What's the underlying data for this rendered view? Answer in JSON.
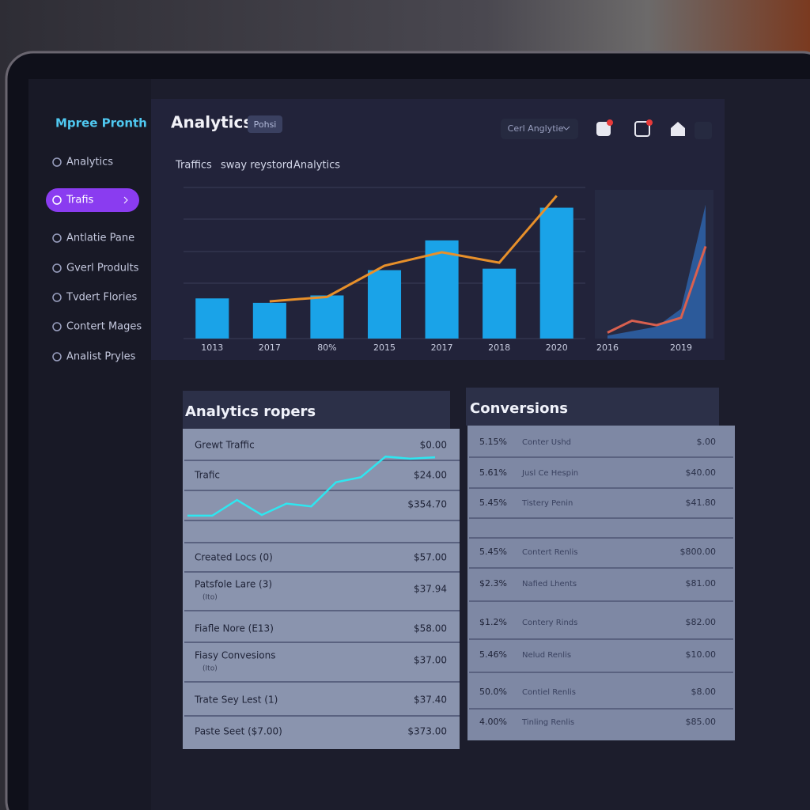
{
  "sidebar": {
    "brand": "Mpree Pronth",
    "nav": [
      "Analytics",
      "Trafis",
      "Antlatie Pane",
      "Gverl Prodults",
      "Tvdert Flories",
      "Contert Mages",
      "Analist Pryles"
    ],
    "active": 1
  },
  "header": {
    "title": "Analytics",
    "badge": "Pohsi",
    "dropdown": "Cerl Anglytie"
  },
  "tabs": [
    "Traffics",
    "sway reystord",
    "Analytics"
  ],
  "chart_data": [
    {
      "type": "bar",
      "categories": [
        "1013",
        "2017",
        "80%",
        "2015",
        "2017",
        "2018",
        "2020"
      ],
      "ylim": [
        0,
        100
      ],
      "series": [
        {
          "type": "bar",
          "color": "#1aa3e8",
          "values": [
            27,
            24,
            29,
            46,
            66,
            47,
            88
          ]
        },
        {
          "type": "line",
          "color": "#e8902a",
          "values": [
            null,
            25,
            28,
            49,
            58,
            51,
            96
          ]
        }
      ]
    },
    {
      "type": "area",
      "categories": [
        "2016",
        null,
        null,
        "2019",
        null
      ],
      "ylim": [
        0,
        100
      ],
      "series": [
        {
          "type": "area",
          "color": "#2c5a9a",
          "values": [
            2,
            5,
            8,
            20,
            90
          ]
        },
        {
          "type": "line",
          "color": "#d9604f",
          "values": [
            4,
            12,
            9,
            14,
            62
          ]
        }
      ]
    }
  ],
  "left_table": {
    "title": "Analytics ropers",
    "sparkline": {
      "color": "#2ee6f0",
      "ylim": [
        0,
        100
      ],
      "values": [
        9,
        9,
        31,
        10,
        26,
        22,
        56,
        63,
        92,
        89,
        91
      ]
    },
    "rows": [
      {
        "label": "Grewt Traffic",
        "value": "$0.00"
      },
      {
        "label": "Trafic",
        "value": "$24.00"
      },
      {
        "value": "$354.70"
      },
      {
        "label": "Created Locs (0)",
        "value": "$57.00"
      },
      {
        "label": "Patsfole Lare (3)",
        "sub": "(Ito)",
        "value": "$37.94"
      },
      {
        "label": "Fiafle Nore (E13)",
        "value": "$58.00"
      },
      {
        "label": "Fiasy Convesions",
        "sub": "(Ito)",
        "value": "$37.00"
      },
      {
        "label": "Trate Sey Lest (1)",
        "value": "$37.40"
      },
      {
        "label": "Paste Seet ($7.00)",
        "value": "$373.00"
      }
    ]
  },
  "right_table": {
    "title": "Conversions",
    "rows": [
      {
        "pct": "5.15%",
        "label": "Conter Ushd",
        "value": "$.00"
      },
      {
        "pct": "5.61%",
        "label": "Jusl Ce Hespin",
        "value": "$40.00"
      },
      {
        "pct": "5.45%",
        "label": "Tistery Penin",
        "value": "$41.80"
      },
      {
        "pct": "5.45%",
        "label": "Contert Renlis",
        "value": "$800.00"
      },
      {
        "pct": "$2.3%",
        "label": "Nafied Lhents",
        "value": "$81.00"
      },
      {
        "pct": "$1.2%",
        "label": "Contery Rinds",
        "value": "$82.00"
      },
      {
        "pct": "5.46%",
        "label": "Nelud Renlis",
        "value": "$10.00"
      },
      {
        "pct": "50.0%",
        "label": "Contiel Renlis",
        "value": "$8.00"
      },
      {
        "pct": "4.00%",
        "label": "Tinling Renlis",
        "value": "$85.00"
      }
    ]
  }
}
